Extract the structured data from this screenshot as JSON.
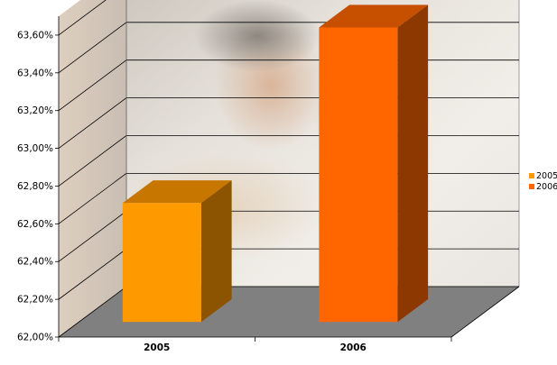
{
  "chart_data": {
    "type": "bar",
    "title": "",
    "xlabel": "",
    "ylabel": "",
    "categories": [
      "2005",
      "2006"
    ],
    "series": [
      {
        "name": "2005",
        "values": [
          62.63,
          null
        ],
        "color": "#ff9900"
      },
      {
        "name": "2006",
        "values": [
          null,
          63.56
        ],
        "color": "#ff6600"
      }
    ],
    "ylim": [
      62.0,
      63.7
    ],
    "yticks": [
      "62,00%",
      "62,20%",
      "62,40%",
      "62,60%",
      "62,80%",
      "63,00%",
      "63,20%",
      "63,40%",
      "63,60%"
    ],
    "ytick_values": [
      62.0,
      62.2,
      62.4,
      62.6,
      62.8,
      63.0,
      63.2,
      63.4,
      63.6
    ],
    "grid": true,
    "three_d": true,
    "legend": {
      "position": "right",
      "entries": [
        "2005",
        "2006"
      ]
    },
    "background": "photo of a man and child looking at a laptop",
    "floor_color": "#808080"
  }
}
